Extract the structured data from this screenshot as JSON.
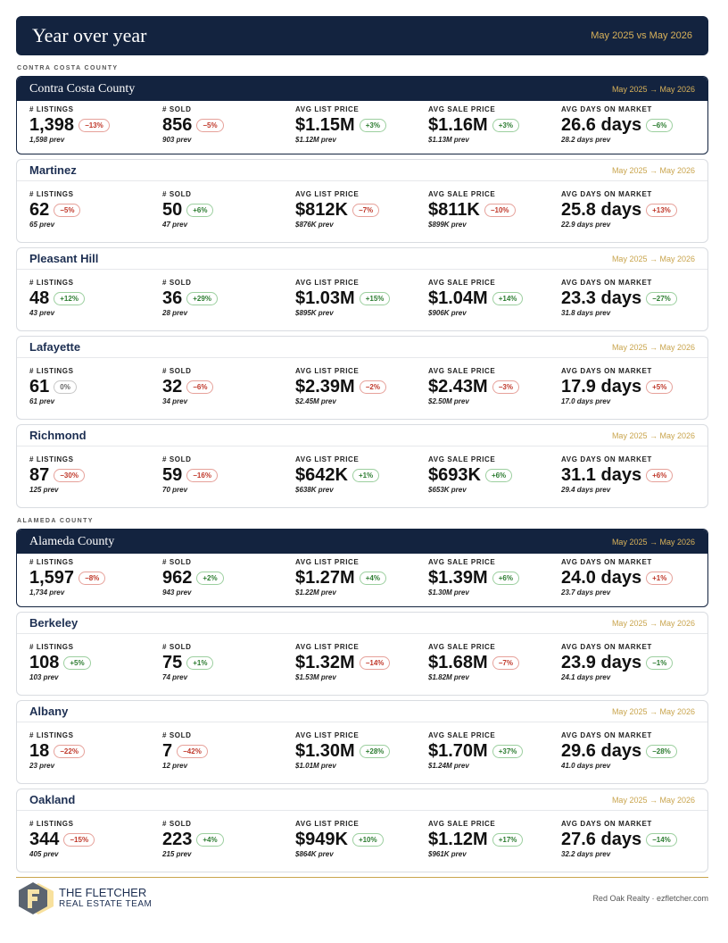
{
  "header": {
    "title": "Year over year",
    "period": "May 2025 vs May 2026"
  },
  "card_period": "May 2025 → May 2026",
  "metric_labels": [
    "# LISTINGS",
    "# SOLD",
    "AVG LIST PRICE",
    "AVG SALE PRICE",
    "AVG DAYS ON MARKET"
  ],
  "sections": [
    {
      "label": "CONTRA COSTA COUNTY",
      "cards": [
        {
          "name": "Contra Costa County",
          "summary": true,
          "metrics": [
            {
              "value": "1,398",
              "change": "−13%",
              "prev": "1,598 prev",
              "tone": "bad"
            },
            {
              "value": "856",
              "change": "−5%",
              "prev": "903 prev",
              "tone": "bad"
            },
            {
              "value": "$1.15M",
              "change": "+3%",
              "prev": "$1.12M prev",
              "tone": "good"
            },
            {
              "value": "$1.16M",
              "change": "+3%",
              "prev": "$1.13M prev",
              "tone": "good"
            },
            {
              "value": "26.6 days",
              "change": "−6%",
              "prev": "28.2 days prev",
              "tone": "good"
            }
          ]
        },
        {
          "name": "Martinez",
          "summary": false,
          "metrics": [
            {
              "value": "62",
              "change": "−5%",
              "prev": "65 prev",
              "tone": "bad"
            },
            {
              "value": "50",
              "change": "+6%",
              "prev": "47 prev",
              "tone": "good"
            },
            {
              "value": "$812K",
              "change": "−7%",
              "prev": "$876K prev",
              "tone": "bad"
            },
            {
              "value": "$811K",
              "change": "−10%",
              "prev": "$899K prev",
              "tone": "bad"
            },
            {
              "value": "25.8 days",
              "change": "+13%",
              "prev": "22.9 days prev",
              "tone": "bad"
            }
          ]
        },
        {
          "name": "Pleasant Hill",
          "summary": false,
          "metrics": [
            {
              "value": "48",
              "change": "+12%",
              "prev": "43 prev",
              "tone": "good"
            },
            {
              "value": "36",
              "change": "+29%",
              "prev": "28 prev",
              "tone": "good"
            },
            {
              "value": "$1.03M",
              "change": "+15%",
              "prev": "$895K prev",
              "tone": "good"
            },
            {
              "value": "$1.04M",
              "change": "+14%",
              "prev": "$906K prev",
              "tone": "good"
            },
            {
              "value": "23.3 days",
              "change": "−27%",
              "prev": "31.8 days prev",
              "tone": "good"
            }
          ]
        },
        {
          "name": "Lafayette",
          "summary": false,
          "metrics": [
            {
              "value": "61",
              "change": "0%",
              "prev": "61 prev",
              "tone": "neutral"
            },
            {
              "value": "32",
              "change": "−6%",
              "prev": "34 prev",
              "tone": "bad"
            },
            {
              "value": "$2.39M",
              "change": "−2%",
              "prev": "$2.45M prev",
              "tone": "bad"
            },
            {
              "value": "$2.43M",
              "change": "−3%",
              "prev": "$2.50M prev",
              "tone": "bad"
            },
            {
              "value": "17.9 days",
              "change": "+5%",
              "prev": "17.0 days prev",
              "tone": "bad"
            }
          ]
        },
        {
          "name": "Richmond",
          "summary": false,
          "metrics": [
            {
              "value": "87",
              "change": "−30%",
              "prev": "125 prev",
              "tone": "bad"
            },
            {
              "value": "59",
              "change": "−16%",
              "prev": "70 prev",
              "tone": "bad"
            },
            {
              "value": "$642K",
              "change": "+1%",
              "prev": "$638K prev",
              "tone": "good"
            },
            {
              "value": "$693K",
              "change": "+6%",
              "prev": "$653K prev",
              "tone": "good"
            },
            {
              "value": "31.1 days",
              "change": "+6%",
              "prev": "29.4 days prev",
              "tone": "bad"
            }
          ]
        }
      ]
    },
    {
      "label": "ALAMEDA COUNTY",
      "cards": [
        {
          "name": "Alameda County",
          "summary": true,
          "metrics": [
            {
              "value": "1,597",
              "change": "−8%",
              "prev": "1,734 prev",
              "tone": "bad"
            },
            {
              "value": "962",
              "change": "+2%",
              "prev": "943 prev",
              "tone": "good"
            },
            {
              "value": "$1.27M",
              "change": "+4%",
              "prev": "$1.22M prev",
              "tone": "good"
            },
            {
              "value": "$1.39M",
              "change": "+6%",
              "prev": "$1.30M prev",
              "tone": "good"
            },
            {
              "value": "24.0 days",
              "change": "+1%",
              "prev": "23.7 days prev",
              "tone": "bad"
            }
          ]
        },
        {
          "name": "Berkeley",
          "summary": false,
          "metrics": [
            {
              "value": "108",
              "change": "+5%",
              "prev": "103 prev",
              "tone": "good"
            },
            {
              "value": "75",
              "change": "+1%",
              "prev": "74 prev",
              "tone": "good"
            },
            {
              "value": "$1.32M",
              "change": "−14%",
              "prev": "$1.53M prev",
              "tone": "bad"
            },
            {
              "value": "$1.68M",
              "change": "−7%",
              "prev": "$1.82M prev",
              "tone": "bad"
            },
            {
              "value": "23.9 days",
              "change": "−1%",
              "prev": "24.1 days prev",
              "tone": "good"
            }
          ]
        },
        {
          "name": "Albany",
          "summary": false,
          "metrics": [
            {
              "value": "18",
              "change": "−22%",
              "prev": "23 prev",
              "tone": "bad"
            },
            {
              "value": "7",
              "change": "−42%",
              "prev": "12 prev",
              "tone": "bad"
            },
            {
              "value": "$1.30M",
              "change": "+28%",
              "prev": "$1.01M prev",
              "tone": "good"
            },
            {
              "value": "$1.70M",
              "change": "+37%",
              "prev": "$1.24M prev",
              "tone": "good"
            },
            {
              "value": "29.6 days",
              "change": "−28%",
              "prev": "41.0 days prev",
              "tone": "good"
            }
          ]
        },
        {
          "name": "Oakland",
          "summary": false,
          "metrics": [
            {
              "value": "344",
              "change": "−15%",
              "prev": "405 prev",
              "tone": "bad"
            },
            {
              "value": "223",
              "change": "+4%",
              "prev": "215 prev",
              "tone": "good"
            },
            {
              "value": "$949K",
              "change": "+10%",
              "prev": "$864K prev",
              "tone": "good"
            },
            {
              "value": "$1.12M",
              "change": "+17%",
              "prev": "$961K prev",
              "tone": "good"
            },
            {
              "value": "27.6 days",
              "change": "−14%",
              "prev": "32.2 days prev",
              "tone": "good"
            }
          ]
        }
      ]
    }
  ],
  "footer": {
    "brand_line1": "THE FLETCHER",
    "brand_line2": "REAL ESTATE TEAM",
    "credit": "Red Oak Realty · ezfletcher.com"
  }
}
